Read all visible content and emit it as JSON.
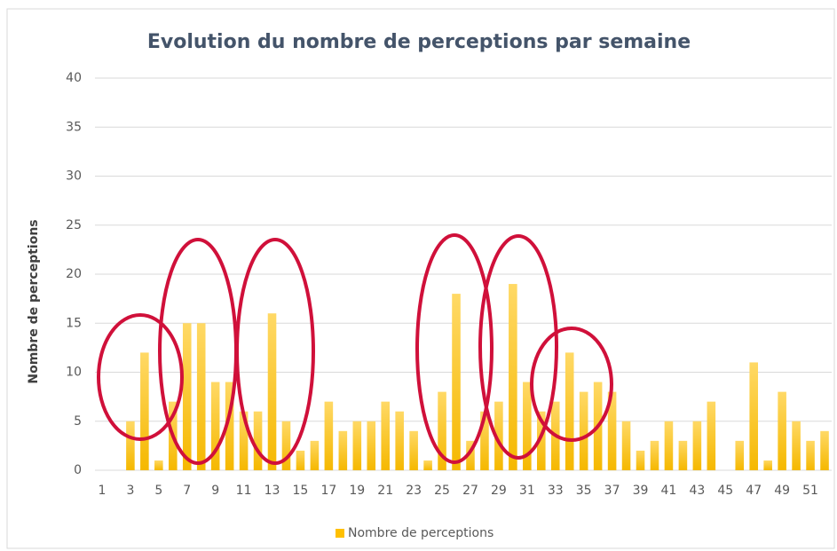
{
  "chart_data": {
    "type": "bar",
    "title": "Evolution du nombre de perceptions par semaine",
    "y_label": "Nombre de perceptions",
    "categories": [
      "1",
      null,
      "3",
      null,
      "5",
      null,
      "7",
      null,
      "9",
      null,
      "11",
      null,
      "13",
      null,
      "15",
      null,
      "17",
      null,
      "19",
      null,
      "21",
      null,
      "23",
      null,
      "25",
      null,
      "27",
      null,
      "29",
      null,
      "31",
      null,
      "33",
      null,
      "35",
      null,
      "37",
      null,
      "39",
      null,
      "41",
      null,
      "43",
      null,
      "45",
      null,
      "47",
      null,
      "49",
      null,
      "51",
      null
    ],
    "series": [
      {
        "name": "Nombre de perceptions",
        "color": "#ffc000",
        "values": [
          0,
          0,
          5,
          12,
          1,
          7,
          15,
          15,
          9,
          9,
          6,
          6,
          16,
          5,
          2,
          3,
          7,
          4,
          5,
          5,
          7,
          6,
          4,
          1,
          8,
          18,
          3,
          6,
          7,
          19,
          9,
          6,
          7,
          12,
          8,
          9,
          8,
          5,
          2,
          3,
          5,
          3,
          5,
          7,
          0,
          3,
          11,
          1,
          8,
          5,
          3,
          4
        ]
      }
    ],
    "ylim": [
      0,
      40
    ],
    "yticks": [
      0,
      5,
      10,
      15,
      20,
      25,
      30,
      35,
      40
    ],
    "grid": true,
    "legend": "bottom"
  }
}
